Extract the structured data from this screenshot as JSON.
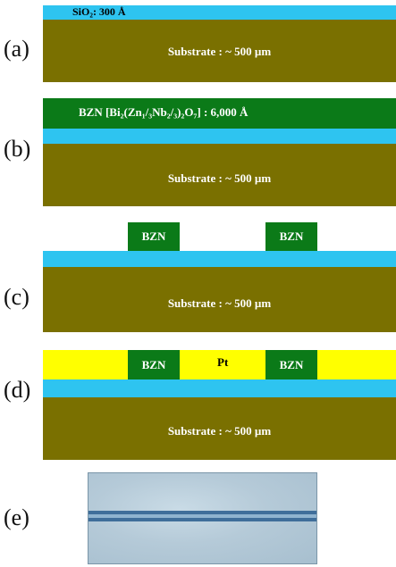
{
  "panels": {
    "a": {
      "label": "(a)",
      "sio2_label": "SiO₂: 300 Å",
      "substrate_label": "Substrate : ~ 500 µm"
    },
    "b": {
      "label": "(b)",
      "bzn_label": "BZN [Bi₂(Zn₁/₃Nb₂/₃)₂O₇] : 6,000 Å",
      "substrate_label": "Substrate : ~ 500 µm"
    },
    "c": {
      "label": "(c)",
      "bzn_left": "BZN",
      "bzn_right": "BZN",
      "substrate_label": "Substrate : ~ 500 µm"
    },
    "d": {
      "label": "(d)",
      "bzn_left": "BZN",
      "pt_label": "Pt",
      "bzn_right": "BZN",
      "substrate_label": "Substrate : ~ 500 µm"
    },
    "e": {
      "label": "(e)"
    }
  },
  "colors": {
    "sio2": "#2ec4f0",
    "substrate": "#7a7000",
    "bzn": "#0b7a18",
    "pt": "#ffff00"
  }
}
